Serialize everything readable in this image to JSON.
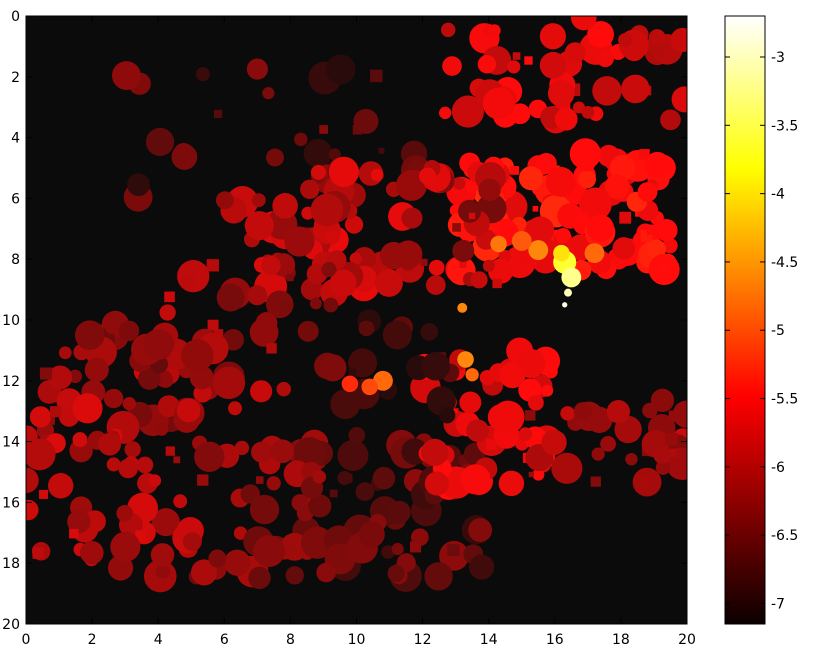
{
  "chart_data": {
    "type": "heatmap",
    "title": "",
    "xlabel": "",
    "ylabel": "",
    "xlim": [
      0,
      20
    ],
    "ylim": [
      0,
      20
    ],
    "y_axis_direction": "down",
    "x_ticks": [
      "0",
      "2",
      "4",
      "6",
      "8",
      "10",
      "12",
      "14",
      "16",
      "18",
      "20"
    ],
    "y_ticks": [
      "0",
      "2",
      "4",
      "6",
      "8",
      "10",
      "12",
      "14",
      "16",
      "18",
      "20"
    ],
    "background_value": -7.2,
    "colormap": "hot",
    "colorbar": {
      "range": [
        -7.15,
        -2.7
      ],
      "ticks": [
        "-3",
        "-3.5",
        "-4",
        "-4.5",
        "-5",
        "-5.5",
        "-6",
        "-6.5",
        "-7"
      ],
      "tick_values": [
        -3,
        -3.5,
        -4,
        -4.5,
        -5,
        -5.5,
        -6,
        -6.5,
        -7
      ]
    },
    "blobs_note_free": true,
    "clusters": [
      {
        "x": [
          12.0,
          20.0
        ],
        "y": [
          0.0,
          3.5
        ],
        "n": 55,
        "v": [
          -6.0,
          -5.4
        ]
      },
      {
        "x": [
          3.0,
          12.0
        ],
        "y": [
          1.5,
          6.0
        ],
        "n": 25,
        "v": [
          -6.9,
          -6.2
        ]
      },
      {
        "x": [
          13.0,
          19.5
        ],
        "y": [
          4.5,
          8.5
        ],
        "n": 120,
        "v": [
          -5.7,
          -5.2
        ]
      },
      {
        "x": [
          8.5,
          14.5
        ],
        "y": [
          5.0,
          9.0
        ],
        "n": 55,
        "v": [
          -6.4,
          -5.6
        ]
      },
      {
        "x": [
          6.0,
          10.0
        ],
        "y": [
          6.0,
          9.5
        ],
        "n": 40,
        "v": [
          -6.3,
          -5.7
        ]
      },
      {
        "x": [
          3.5,
          9.5
        ],
        "y": [
          8.0,
          12.5
        ],
        "n": 40,
        "v": [
          -6.4,
          -5.8
        ]
      },
      {
        "x": [
          0.5,
          6.5
        ],
        "y": [
          10.0,
          13.5
        ],
        "n": 40,
        "v": [
          -6.5,
          -5.9
        ]
      },
      {
        "x": [
          0.0,
          5.0
        ],
        "y": [
          12.5,
          18.5
        ],
        "n": 60,
        "v": [
          -6.2,
          -5.7
        ]
      },
      {
        "x": [
          5.0,
          9.0
        ],
        "y": [
          14.0,
          18.5
        ],
        "n": 50,
        "v": [
          -6.5,
          -6.0
        ]
      },
      {
        "x": [
          9.0,
          14.0
        ],
        "y": [
          14.0,
          18.5
        ],
        "n": 45,
        "v": [
          -6.8,
          -6.2
        ]
      },
      {
        "x": [
          12.0,
          16.0
        ],
        "y": [
          11.0,
          15.5
        ],
        "n": 55,
        "v": [
          -5.9,
          -5.4
        ]
      },
      {
        "x": [
          15.0,
          20.0
        ],
        "y": [
          12.5,
          15.5
        ],
        "n": 35,
        "v": [
          -6.3,
          -5.8
        ]
      },
      {
        "x": [
          9.0,
          13.0
        ],
        "y": [
          9.5,
          15.5
        ],
        "n": 20,
        "v": [
          -6.9,
          -6.5
        ]
      }
    ],
    "hot_spots": [
      {
        "x": 16.3,
        "y": 8.1,
        "r": 0.35,
        "v": -3.6
      },
      {
        "x": 16.5,
        "y": 8.6,
        "r": 0.3,
        "v": -3.2
      },
      {
        "x": 16.2,
        "y": 7.8,
        "r": 0.25,
        "v": -4.0
      },
      {
        "x": 15.5,
        "y": 7.7,
        "r": 0.3,
        "v": -4.6
      },
      {
        "x": 15.0,
        "y": 7.4,
        "r": 0.3,
        "v": -4.9
      },
      {
        "x": 17.2,
        "y": 7.8,
        "r": 0.3,
        "v": -4.8
      },
      {
        "x": 14.3,
        "y": 7.5,
        "r": 0.25,
        "v": -4.7
      },
      {
        "x": 10.8,
        "y": 12.0,
        "r": 0.3,
        "v": -4.8
      },
      {
        "x": 10.4,
        "y": 12.2,
        "r": 0.25,
        "v": -5.0
      },
      {
        "x": 9.8,
        "y": 12.1,
        "r": 0.25,
        "v": -5.2
      },
      {
        "x": 13.3,
        "y": 11.3,
        "r": 0.25,
        "v": -4.6
      },
      {
        "x": 13.5,
        "y": 11.8,
        "r": 0.2,
        "v": -4.8
      },
      {
        "x": 13.2,
        "y": 9.6,
        "r": 0.15,
        "v": -4.6
      },
      {
        "x": 16.4,
        "y": 9.1,
        "r": 0.12,
        "v": -3.0
      },
      {
        "x": 16.3,
        "y": 9.5,
        "r": 0.08,
        "v": -2.8
      }
    ]
  }
}
